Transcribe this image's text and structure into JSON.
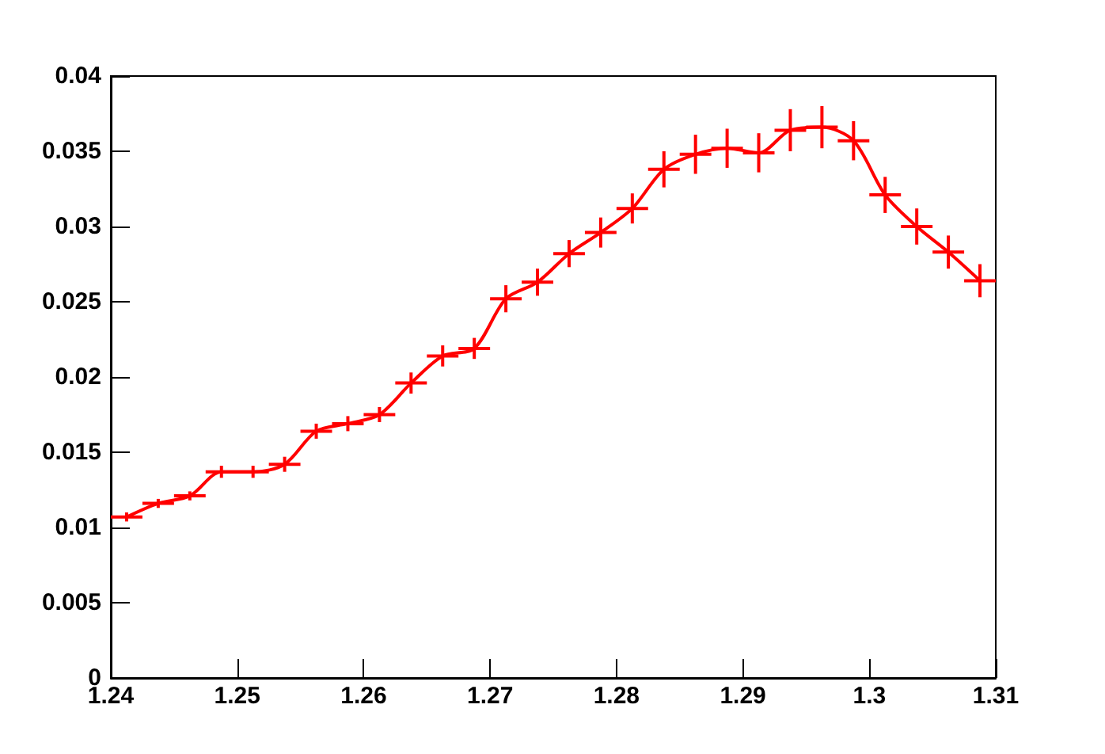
{
  "chart_data": {
    "type": "line",
    "color": "#ff0000",
    "x": [
      1.24125,
      1.24375,
      1.24625,
      1.24875,
      1.25125,
      1.25375,
      1.25625,
      1.25875,
      1.26125,
      1.26375,
      1.26625,
      1.26875,
      1.27125,
      1.27375,
      1.27625,
      1.27875,
      1.28125,
      1.28375,
      1.28625,
      1.28875,
      1.29125,
      1.29375,
      1.29625,
      1.29875,
      1.30125,
      1.30375,
      1.30625,
      1.30875
    ],
    "values": [
      0.0107,
      0.0116,
      0.0121,
      0.0137,
      0.0137,
      0.0142,
      0.0164,
      0.0169,
      0.0175,
      0.0196,
      0.0214,
      0.0219,
      0.0252,
      0.0263,
      0.0282,
      0.0296,
      0.0312,
      0.0338,
      0.0348,
      0.0352,
      0.0349,
      0.0364,
      0.0366,
      0.0357,
      0.0321,
      0.03,
      0.0283,
      0.0264
    ],
    "errors": [
      0.0003,
      0.0003,
      0.0003,
      0.0004,
      0.0004,
      0.0005,
      0.0005,
      0.0005,
      0.0005,
      0.0007,
      0.0007,
      0.0007,
      0.0009,
      0.0009,
      0.0009,
      0.001,
      0.001,
      0.0012,
      0.0013,
      0.0013,
      0.0013,
      0.0014,
      0.0014,
      0.0013,
      0.0012,
      0.0012,
      0.0011,
      0.0011
    ],
    "xerrors": [
      0.00125,
      0.00125,
      0.00125,
      0.00125,
      0.00125,
      0.00125,
      0.00125,
      0.00125,
      0.00125,
      0.00125,
      0.00125,
      0.00125,
      0.00125,
      0.00125,
      0.00125,
      0.00125,
      0.00125,
      0.00125,
      0.00125,
      0.00125,
      0.00125,
      0.00125,
      0.00125,
      0.00125,
      0.00125,
      0.00125,
      0.00125,
      0.00125
    ],
    "xlim": [
      1.24,
      1.31
    ],
    "xticks": [
      1.24,
      1.25,
      1.26,
      1.27,
      1.28,
      1.29,
      1.3,
      1.31
    ],
    "ylim": [
      0,
      0.04
    ],
    "yticks": [
      0,
      0.005,
      0.01,
      0.015,
      0.02,
      0.025,
      0.03,
      0.035,
      0.04
    ],
    "grid": false,
    "marker": "none",
    "line_style": "solid"
  }
}
